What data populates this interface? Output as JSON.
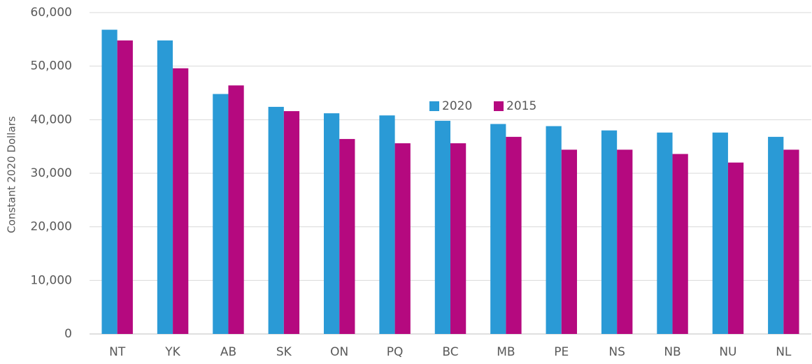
{
  "chart_data": {
    "type": "bar",
    "y_label": "Constant 2020 Dollars",
    "categories": [
      "NT",
      "YK",
      "AB",
      "SK",
      "ON",
      "PQ",
      "BC",
      "MB",
      "PE",
      "NS",
      "NB",
      "NU",
      "NL"
    ],
    "series": [
      {
        "name": "2020",
        "color": "#2a9ad6",
        "values": [
          56800,
          54800,
          44800,
          42400,
          41200,
          40800,
          39800,
          39200,
          38800,
          38000,
          37600,
          37600,
          36800
        ]
      },
      {
        "name": "2015",
        "color": "#b5097f",
        "values": [
          54800,
          49600,
          46400,
          41600,
          36400,
          35600,
          35600,
          36800,
          34400,
          34400,
          33600,
          32000,
          34400
        ]
      }
    ],
    "ylim": [
      0,
      60000
    ],
    "yticks": [
      0,
      {
        "value": 10000,
        "label": "10,000"
      },
      {
        "value": 20000,
        "label": "20,000"
      },
      {
        "value": 30000,
        "label": "30,000"
      },
      {
        "value": 40000,
        "label": "40,000"
      },
      {
        "value": 50000,
        "label": "50,000"
      },
      {
        "value": 60000,
        "label": "60,000"
      }
    ],
    "grid": true,
    "legend": "center"
  }
}
